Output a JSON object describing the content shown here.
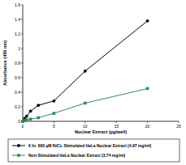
{
  "chart_data": {
    "type": "line",
    "x_label": "Nuclear Extract (µg/well)",
    "y_label": "Absorbance (450 nm)",
    "x": [
      0,
      0.3125,
      0.625,
      1.25,
      2.5,
      5,
      10,
      20
    ],
    "series": [
      {
        "name": "6 hr. 800 µM NiCl₂ Stimulated HeLa Nuclear Extract (4.97 mg/ml)",
        "color": "#000000",
        "marker": "circle",
        "values": [
          0,
          0.04,
          0.07,
          0.14,
          0.22,
          0.28,
          0.69,
          1.38
        ]
      },
      {
        "name": "Non-Stimulated HeLa Nuclear Extract (3.74 mg/ml)",
        "color": "#2e8b57",
        "marker": "square",
        "values": [
          0,
          0.01,
          0.02,
          0.03,
          0.05,
          0.11,
          0.25,
          0.45
        ]
      }
    ],
    "xlim": [
      0,
      25
    ],
    "xticks": [
      0,
      5,
      10,
      15,
      20,
      25
    ],
    "ylim": [
      0,
      1.6
    ],
    "yticks": [
      0,
      0.2,
      0.4,
      0.6,
      0.8,
      1,
      1.2,
      1.4,
      1.6
    ],
    "grid": false,
    "legend": "bottom"
  }
}
